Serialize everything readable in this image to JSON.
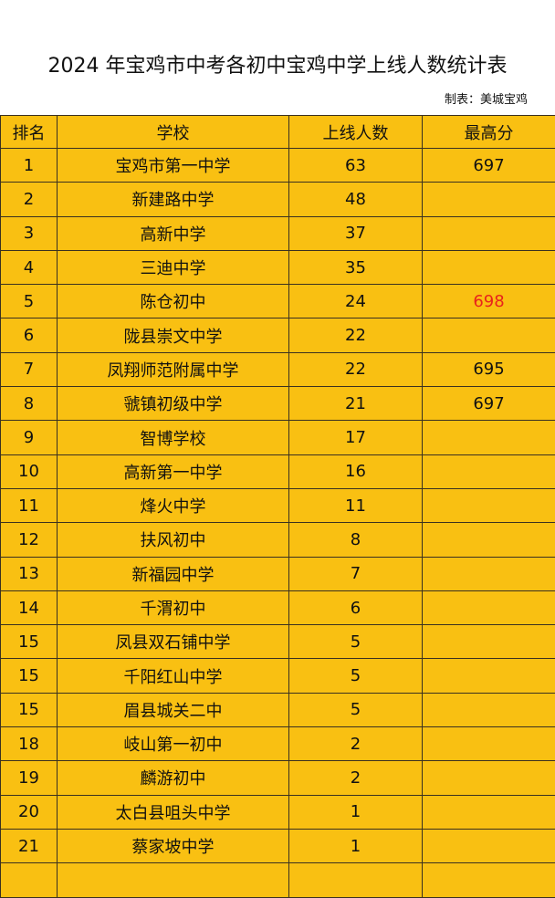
{
  "header": {
    "title": "2024 年宝鸡市中考各初中宝鸡中学上线人数统计表",
    "credit": "制表：美城宝鸡"
  },
  "table": {
    "columns": [
      "排名",
      "学校",
      "上线人数",
      "最高分"
    ],
    "rows": [
      {
        "rank": 1,
        "school": "宝鸡市第一中学",
        "count": 63,
        "top": 697
      },
      {
        "rank": 2,
        "school": "新建路中学",
        "count": 48
      },
      {
        "rank": 3,
        "school": "高新中学",
        "count": 37
      },
      {
        "rank": 4,
        "school": "三迪中学",
        "count": 35
      },
      {
        "rank": 5,
        "school": "陈仓初中",
        "count": 24,
        "top": 698,
        "top_color": "#e8231c"
      },
      {
        "rank": 6,
        "school": "陇县崇文中学",
        "count": 22
      },
      {
        "rank": 7,
        "school": "凤翔师范附属中学",
        "count": 22,
        "top": 695
      },
      {
        "rank": 8,
        "school": "虢镇初级中学",
        "count": 21,
        "top": 697
      },
      {
        "rank": 9,
        "school": "智博学校",
        "count": 17
      },
      {
        "rank": 10,
        "school": "高新第一中学",
        "count": 16
      },
      {
        "rank": 11,
        "school": "烽火中学",
        "count": 11
      },
      {
        "rank": 12,
        "school": "扶风初中",
        "count": 8
      },
      {
        "rank": 13,
        "school": "新福园中学",
        "count": 7
      },
      {
        "rank": 14,
        "school": "千渭初中",
        "count": 6
      },
      {
        "rank": 15,
        "school": "凤县双石铺中学",
        "count": 5
      },
      {
        "rank": 15,
        "school": "千阳红山中学",
        "count": 5
      },
      {
        "rank": 15,
        "school": "眉县城关二中",
        "count": 5
      },
      {
        "rank": 18,
        "school": "岐山第一初中",
        "count": 2
      },
      {
        "rank": 19,
        "school": "麟游初中",
        "count": 2
      },
      {
        "rank": 20,
        "school": "太白县咀头中学",
        "count": 1
      },
      {
        "rank": 21,
        "school": "蔡家坡中学",
        "count": 1
      }
    ]
  }
}
